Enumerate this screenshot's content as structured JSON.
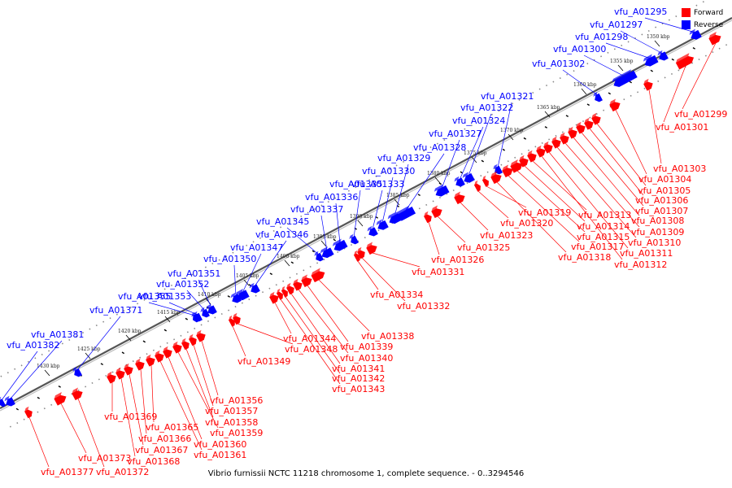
{
  "footer": "Vibrio furnissii NCTC 11218 chromosome 1, complete sequence. - 0..3294546",
  "legend": [
    {
      "label": "Forward",
      "color": "#ff0000"
    },
    {
      "label": "Reverse",
      "color": "#0000ff"
    }
  ],
  "colors": {
    "forward": "#ff0000",
    "reverse": "#0000ff",
    "backbone": "#777777"
  },
  "scale_ticks": [
    "1350 kbp",
    "1355 kbp",
    "1360 kbp",
    "1365 kbp",
    "1370 kbp",
    "1375 kbp",
    "1380 kbp",
    "1385 kbp",
    "1390 kbp",
    "1395 kbp",
    "1400 kbp",
    "1405 kbp",
    "1410 kbp",
    "1415 kbp",
    "1420 kbp",
    "1425 kbp",
    "1430 kbp"
  ],
  "reverse_genes": [
    "vfu_A01295",
    "vfu_A01297",
    "vfu_A01298",
    "vfu_A01300",
    "vfu_A01302",
    "vfu_A01321",
    "vfu_A01322",
    "vfu_A01324",
    "vfu_A01327",
    "vfu_A01328",
    "vfu_A01329",
    "vfu_A01330",
    "vfu_A01333",
    "vfu_A01335",
    "vfu_A01336",
    "vfu_A01337",
    "vfu_A01345",
    "vfu_A01346",
    "vfu_A01347",
    "vfu_A01350",
    "vfu_A01351",
    "vfu_A01352",
    "vfu_A01353",
    "vfu_A01355",
    "vfu_A01371",
    "vfu_A01381",
    "vfu_A01382"
  ],
  "forward_genes": [
    "vfu_A01299",
    "vfu_A01301",
    "vfu_A01303",
    "vfu_A01304",
    "vfu_A01305",
    "vfu_A01306",
    "vfu_A01307",
    "vfu_A01308",
    "vfu_A01309",
    "vfu_A01310",
    "vfu_A01311",
    "vfu_A01312",
    "vfu_A01313",
    "vfu_A01314",
    "vfu_A01315",
    "vfu_A01317",
    "vfu_A01318",
    "vfu_A01319",
    "vfu_A01320",
    "vfu_A01323",
    "vfu_A01325",
    "vfu_A01326",
    "vfu_A01331",
    "vfu_A01332",
    "vfu_A01334",
    "vfu_A01338",
    "vfu_A01339",
    "vfu_A01340",
    "vfu_A01341",
    "vfu_A01342",
    "vfu_A01343",
    "vfu_A01344",
    "vfu_A01348",
    "vfu_A01349",
    "vfu_A01356",
    "vfu_A01357",
    "vfu_A01358",
    "vfu_A01359",
    "vfu_A01360",
    "vfu_A01361",
    "vfu_A01365",
    "vfu_A01366",
    "vfu_A01367",
    "vfu_A01368",
    "vfu_A01369",
    "vfu_A01372",
    "vfu_A01373",
    "vfu_A01377"
  ]
}
